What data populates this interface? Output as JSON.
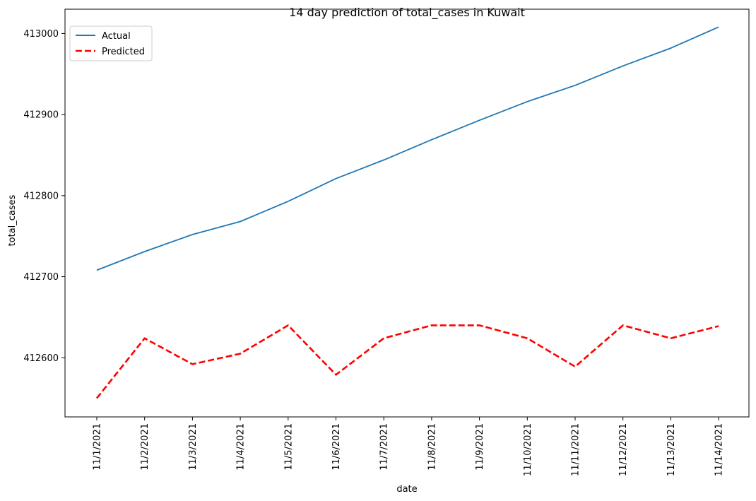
{
  "chart_data": {
    "type": "line",
    "title": "14 day prediction of total_cases in Kuwait",
    "xlabel": "date",
    "ylabel": "total_cases",
    "categories": [
      "11/1/2021",
      "11/2/2021",
      "11/3/2021",
      "11/4/2021",
      "11/5/2021",
      "11/6/2021",
      "11/7/2021",
      "11/8/2021",
      "11/9/2021",
      "11/10/2021",
      "11/11/2021",
      "11/12/2021",
      "11/13/2021",
      "11/14/2021"
    ],
    "yticks": [
      412600,
      412700,
      412800,
      412900,
      413000
    ],
    "ylim": [
      412527,
      413030
    ],
    "grid": false,
    "legend_position": "top-left",
    "series": [
      {
        "name": "Actual",
        "color": "#1f77b4",
        "style": "solid",
        "values": [
          412708,
          412731,
          412752,
          412768,
          412793,
          412821,
          412844,
          412869,
          412893,
          412916,
          412936,
          412960,
          412982,
          413008
        ]
      },
      {
        "name": "Predicted",
        "color": "#ff0000",
        "style": "dashed",
        "values": [
          412550,
          412624,
          412592,
          412605,
          412640,
          412579,
          412624,
          412640,
          412640,
          412624,
          412589,
          412640,
          412624,
          412639
        ]
      }
    ]
  }
}
